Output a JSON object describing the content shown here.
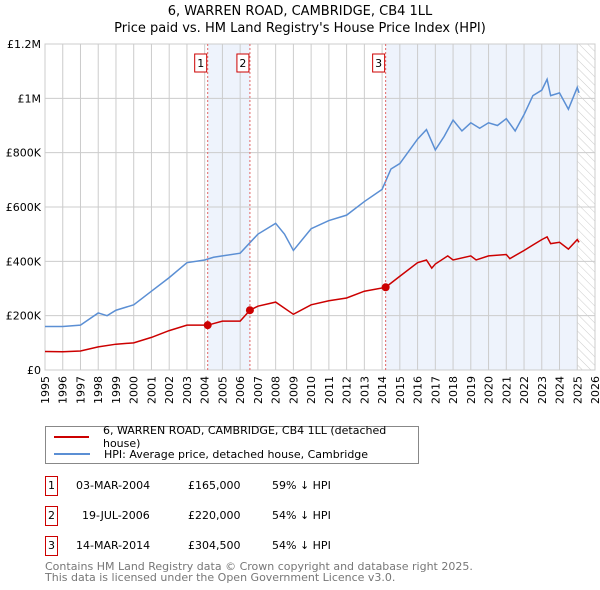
{
  "title": {
    "line1": "6, WARREN ROAD, CAMBRIDGE, CB4 1LL",
    "line2": "Price paid vs. HM Land Registry's House Price Index (HPI)"
  },
  "colors": {
    "property": "#cc0000",
    "hpi": "#5b8fd4",
    "shade": "#eef3fc",
    "grid": "#cccccc"
  },
  "chart_data": {
    "type": "line",
    "title": "Price paid vs. HM Land Registry's House Price Index (HPI)",
    "xlim": [
      1995,
      2026
    ],
    "ylim": [
      0,
      1200000
    ],
    "y_ticks": [
      {
        "v": 0,
        "label": "£0"
      },
      {
        "v": 200000,
        "label": "£200K"
      },
      {
        "v": 400000,
        "label": "£400K"
      },
      {
        "v": 600000,
        "label": "£600K"
      },
      {
        "v": 800000,
        "label": "£800K"
      },
      {
        "v": 1000000,
        "label": "£1M"
      },
      {
        "v": 1200000,
        "label": "£1.2M"
      }
    ],
    "x_ticks": [
      "1995",
      "1996",
      "1997",
      "1998",
      "1999",
      "2000",
      "2001",
      "2002",
      "2003",
      "2004",
      "2005",
      "2006",
      "2007",
      "2008",
      "2009",
      "2010",
      "2011",
      "2012",
      "2013",
      "2014",
      "2015",
      "2016",
      "2017",
      "2018",
      "2019",
      "2020",
      "2021",
      "2022",
      "2023",
      "2024",
      "2025",
      "2026"
    ],
    "grid": true,
    "shaded_ranges": [
      [
        2004.17,
        2006.55
      ],
      [
        2014.2,
        2025.0
      ]
    ],
    "hatched_from": 2025.0,
    "series": [
      {
        "name": "6, WARREN ROAD, CAMBRIDGE, CB4 1LL (detached house)",
        "color": "#cc0000",
        "points": [
          [
            1995,
            68000
          ],
          [
            1996,
            67000
          ],
          [
            1997,
            70000
          ],
          [
            1998,
            85000
          ],
          [
            1999,
            95000
          ],
          [
            2000,
            100000
          ],
          [
            2001,
            120000
          ],
          [
            2002,
            145000
          ],
          [
            2003,
            165000
          ],
          [
            2004.17,
            165000
          ],
          [
            2005,
            180000
          ],
          [
            2006,
            180000
          ],
          [
            2006.55,
            220000
          ],
          [
            2007,
            235000
          ],
          [
            2008,
            250000
          ],
          [
            2009,
            205000
          ],
          [
            2010,
            240000
          ],
          [
            2011,
            255000
          ],
          [
            2012,
            265000
          ],
          [
            2013,
            290000
          ],
          [
            2014.2,
            304500
          ],
          [
            2015,
            345000
          ],
          [
            2016,
            395000
          ],
          [
            2016.5,
            405000
          ],
          [
            2016.8,
            375000
          ],
          [
            2017,
            390000
          ],
          [
            2017.7,
            420000
          ],
          [
            2018,
            405000
          ],
          [
            2019,
            420000
          ],
          [
            2019.3,
            405000
          ],
          [
            2020,
            420000
          ],
          [
            2021,
            425000
          ],
          [
            2021.2,
            410000
          ],
          [
            2022,
            440000
          ],
          [
            2022.5,
            460000
          ],
          [
            2023,
            480000
          ],
          [
            2023.3,
            490000
          ],
          [
            2023.5,
            465000
          ],
          [
            2024,
            470000
          ],
          [
            2024.5,
            445000
          ],
          [
            2025,
            480000
          ],
          [
            2025.1,
            470000
          ]
        ]
      },
      {
        "name": "HPI: Average price, detached house, Cambridge",
        "color": "#5b8fd4",
        "points": [
          [
            1995,
            160000
          ],
          [
            1996,
            160000
          ],
          [
            1997,
            165000
          ],
          [
            1998,
            210000
          ],
          [
            1998.5,
            200000
          ],
          [
            1999,
            220000
          ],
          [
            2000,
            240000
          ],
          [
            2001,
            290000
          ],
          [
            2002,
            340000
          ],
          [
            2003,
            395000
          ],
          [
            2004,
            405000
          ],
          [
            2004.5,
            415000
          ],
          [
            2005,
            420000
          ],
          [
            2006,
            430000
          ],
          [
            2007,
            500000
          ],
          [
            2008,
            540000
          ],
          [
            2008.5,
            500000
          ],
          [
            2009,
            440000
          ],
          [
            2010,
            520000
          ],
          [
            2011,
            550000
          ],
          [
            2012,
            570000
          ],
          [
            2013,
            620000
          ],
          [
            2014,
            665000
          ],
          [
            2014.5,
            740000
          ],
          [
            2015,
            760000
          ],
          [
            2016,
            850000
          ],
          [
            2016.5,
            885000
          ],
          [
            2017,
            810000
          ],
          [
            2017.5,
            860000
          ],
          [
            2018,
            920000
          ],
          [
            2018.5,
            880000
          ],
          [
            2019,
            910000
          ],
          [
            2019.5,
            890000
          ],
          [
            2020,
            910000
          ],
          [
            2020.5,
            900000
          ],
          [
            2021,
            925000
          ],
          [
            2021.5,
            880000
          ],
          [
            2022,
            940000
          ],
          [
            2022.5,
            1010000
          ],
          [
            2023,
            1030000
          ],
          [
            2023.3,
            1070000
          ],
          [
            2023.5,
            1010000
          ],
          [
            2024,
            1020000
          ],
          [
            2024.5,
            960000
          ],
          [
            2025,
            1040000
          ],
          [
            2025.1,
            1020000
          ]
        ]
      }
    ],
    "sales": [
      {
        "n": "1",
        "x": 2004.17,
        "y": 165000,
        "date": "03-MAR-2004",
        "price": "£165,000",
        "hpi": "59% ↓ HPI"
      },
      {
        "n": "2",
        "x": 2006.55,
        "y": 220000,
        "date": "19-JUL-2006",
        "price": "£220,000",
        "hpi": "54% ↓ HPI"
      },
      {
        "n": "3",
        "x": 2014.2,
        "y": 304500,
        "date": "14-MAR-2014",
        "price": "£304,500",
        "hpi": "54% ↓ HPI"
      }
    ]
  },
  "legend": {
    "property": "6, WARREN ROAD, CAMBRIDGE, CB4 1LL (detached house)",
    "hpi": "HPI: Average price, detached house, Cambridge"
  },
  "footer": {
    "line1": "Contains HM Land Registry data © Crown copyright and database right 2025.",
    "line2": "This data is licensed under the Open Government Licence v3.0."
  }
}
